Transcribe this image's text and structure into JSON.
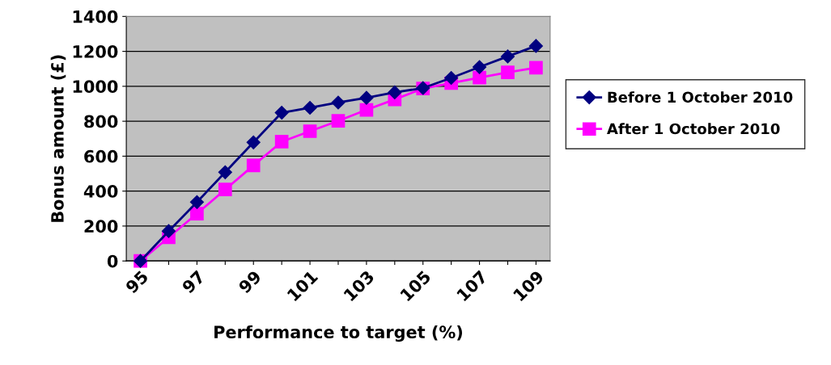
{
  "chart_data": {
    "type": "line",
    "xlabel": "Performance to target (%)",
    "ylabel": "Bonus amount (£)",
    "categories": [
      "95",
      null,
      "97",
      null,
      "99",
      null,
      "101",
      null,
      "103",
      null,
      "105",
      null,
      "107",
      null,
      "109"
    ],
    "series": [
      {
        "name": "Before 1 October 2010",
        "color": "#000080",
        "marker": "diamond",
        "values": [
          0,
          171,
          337,
          508,
          679,
          849,
          877,
          907,
          934,
          965,
          990,
          1048,
          1110,
          1171,
          1231
        ]
      },
      {
        "name": "After 1 October 2010",
        "color": "#ff00ff",
        "marker": "square",
        "values": [
          0,
          135,
          271,
          409,
          547,
          683,
          743,
          802,
          865,
          925,
          987,
          1018,
          1050,
          1080,
          1106
        ]
      }
    ],
    "ylim": [
      0,
      1400
    ],
    "yticks": [
      0,
      200,
      400,
      600,
      800,
      1000,
      1200,
      1400
    ],
    "grid": "y",
    "legend": "right",
    "line_style": "solid"
  }
}
